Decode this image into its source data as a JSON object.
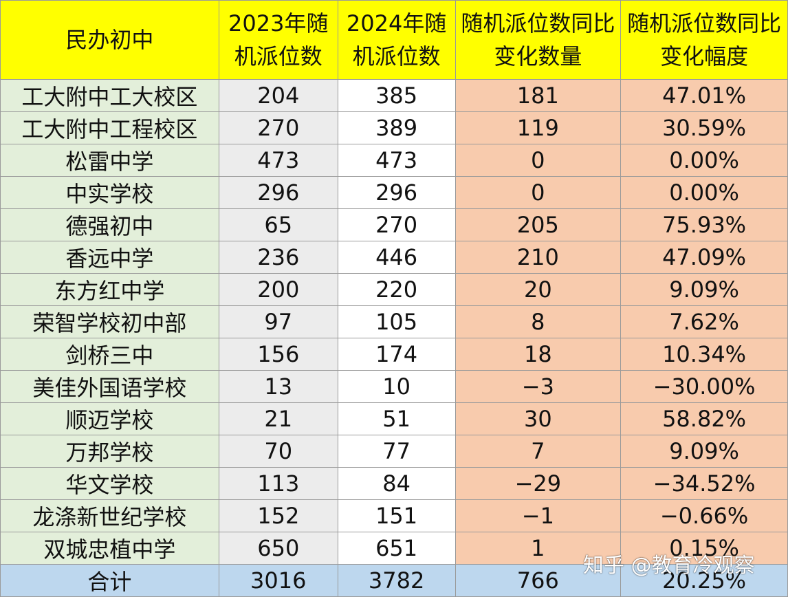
{
  "columns": [
    "民办初中",
    "2023年随机派位数",
    "2024年随机派位数",
    "随机派位数同比变化数量",
    "随机派位数同比变化幅度"
  ],
  "rows": [
    {
      "name": "工大附中工大校区",
      "y2023": "204",
      "y2024": "385",
      "diff": "181",
      "pct": "47.01%"
    },
    {
      "name": "工大附中工程校区",
      "y2023": "270",
      "y2024": "389",
      "diff": "119",
      "pct": "30.59%"
    },
    {
      "name": "松雷中学",
      "y2023": "473",
      "y2024": "473",
      "diff": "0",
      "pct": "0.00%"
    },
    {
      "name": "中实学校",
      "y2023": "296",
      "y2024": "296",
      "diff": "0",
      "pct": "0.00%"
    },
    {
      "name": "德强初中",
      "y2023": "65",
      "y2024": "270",
      "diff": "205",
      "pct": "75.93%"
    },
    {
      "name": "香远中学",
      "y2023": "236",
      "y2024": "446",
      "diff": "210",
      "pct": "47.09%"
    },
    {
      "name": "东方红中学",
      "y2023": "200",
      "y2024": "220",
      "diff": "20",
      "pct": "9.09%"
    },
    {
      "name": "荣智学校初中部",
      "y2023": "97",
      "y2024": "105",
      "diff": "8",
      "pct": "7.62%"
    },
    {
      "name": "剑桥三中",
      "y2023": "156",
      "y2024": "174",
      "diff": "18",
      "pct": "10.34%"
    },
    {
      "name": "美佳外国语学校",
      "y2023": "13",
      "y2024": "10",
      "diff": "−3",
      "pct": "−30.00%"
    },
    {
      "name": "顺迈学校",
      "y2023": "21",
      "y2024": "51",
      "diff": "30",
      "pct": "58.82%"
    },
    {
      "name": "万邦学校",
      "y2023": "70",
      "y2024": "77",
      "diff": "7",
      "pct": "9.09%"
    },
    {
      "name": "华文学校",
      "y2023": "113",
      "y2024": "84",
      "diff": "−29",
      "pct": "−34.52%"
    },
    {
      "name": "龙涤新世纪学校",
      "y2023": "152",
      "y2024": "151",
      "diff": "−1",
      "pct": "−0.66%"
    },
    {
      "name": "双城忠植中学",
      "y2023": "650",
      "y2024": "651",
      "diff": "1",
      "pct": "0.15%"
    }
  ],
  "total": {
    "name": "合计",
    "y2023": "3016",
    "y2024": "3782",
    "diff": "766",
    "pct": "20.25%"
  },
  "watermark": "知乎 @教育冷观察",
  "colors": {
    "header": "#ffff00",
    "name_col": "#e3efda",
    "col_2023": "#ececec",
    "change_cols": "#f8cbad",
    "total_row": "#bdd7ee",
    "grid": "#9a9a9a"
  }
}
